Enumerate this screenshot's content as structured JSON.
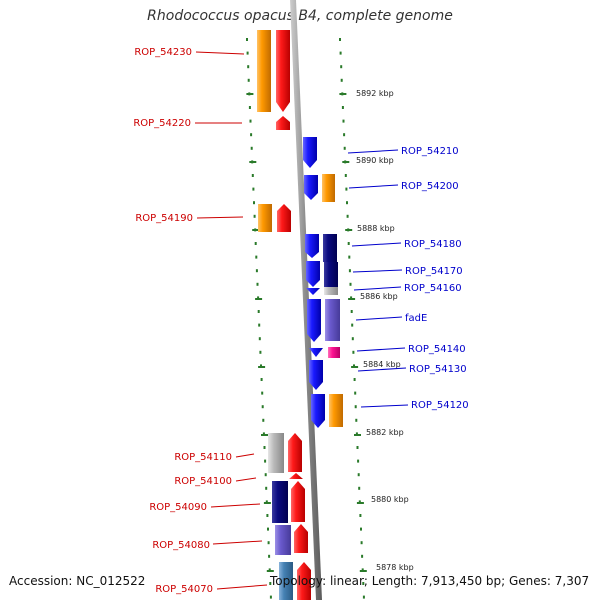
{
  "title": "Rhodococcus opacus B4, complete genome",
  "footer": {
    "accession": "Accession: NC_012522",
    "stats": "Topology: linear; Length: 7,913,450 bp; Genes: 7,307"
  },
  "colors": {
    "backbone": "#8a8a8a",
    "tick": "#2a7a2a",
    "label_left": "#cc0000",
    "label_right": "#0000cc",
    "red": "#ff1a1a",
    "orange": "#ff9900",
    "blue": "#1a1aff",
    "navy": "#0a0a80",
    "slate": "#6a5acd",
    "gray": "#bbbbbb",
    "magenta": "#ff1493",
    "steel": "#4682b4"
  },
  "scale_labels": [
    "5892 kbp",
    "5890 kbp",
    "5888 kbp",
    "5886 kbp",
    "5884 kbp",
    "5882 kbp",
    "5880 kbp",
    "5878 kbp"
  ],
  "gene_labels_left": [
    "ROP_54230",
    "ROP_54220",
    "ROP_54190",
    "ROP_54110",
    "ROP_54100",
    "ROP_54090",
    "ROP_54080",
    "ROP_54070"
  ],
  "gene_labels_right": [
    "ROP_54210",
    "ROP_54200",
    "ROP_54180",
    "ROP_54170",
    "ROP_54160",
    "fadE",
    "ROP_54140",
    "ROP_54130",
    "ROP_54120"
  ]
}
